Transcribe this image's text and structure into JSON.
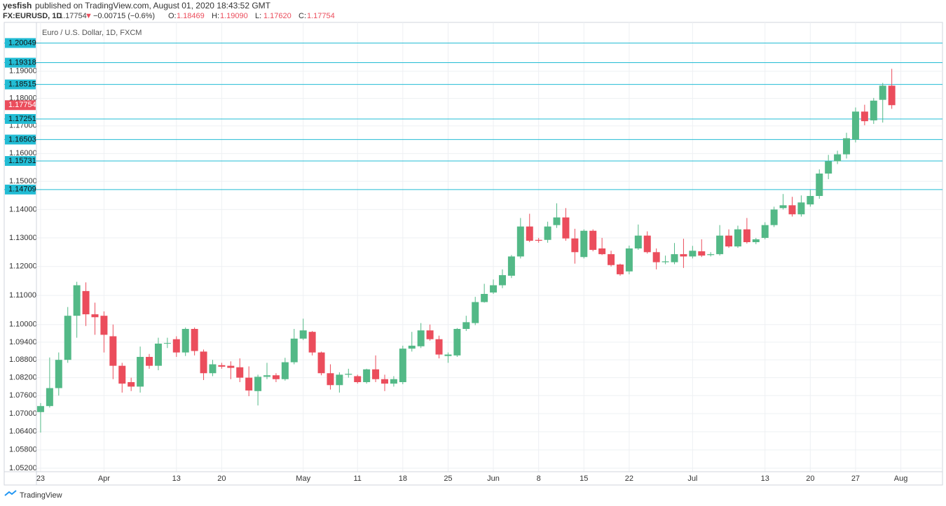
{
  "header": {
    "author": "yesfish",
    "published": "published on TradingView.com, August 01, 2020 18:43:52 GMT",
    "symbol": "FX:EURUSD, 1D",
    "last": "1.17754",
    "change_arrow": "▼",
    "change": "−0.00715 (−0.6%)",
    "ohlc_labels": [
      "O:",
      "H:",
      "L:",
      "C:"
    ],
    "ohlc_values": [
      "1.18469",
      "1.19090",
      "1.17620",
      "1.17754"
    ]
  },
  "footer": {
    "brand": "TradingView"
  },
  "chart_data": {
    "type": "candlestick",
    "legend": "Euro / U.S. Dollar, 1D, FXCM",
    "log_scale": true,
    "grid": true,
    "up_color": "#53b987",
    "down_color": "#eb4d5c",
    "level_color": "#22bcd4",
    "open": [
      1.0705,
      1.0725,
      1.0785,
      1.088,
      1.103,
      1.1115,
      1.1035,
      1.103,
      1.096,
      1.086,
      1.0805,
      1.079,
      1.089,
      1.086,
      1.0935,
      1.095,
      1.0905,
      1.0985,
      1.0908,
      1.0835,
      1.0862,
      1.086,
      1.0855,
      1.082,
      1.0775,
      1.0823,
      1.0828,
      1.0815,
      1.0872,
      1.0952,
      1.0975,
      1.0905,
      1.0835,
      1.0795,
      1.083,
      1.0825,
      1.0805,
      1.0848,
      1.0815,
      1.08,
      1.0805,
      1.0918,
      1.0926,
      1.098,
      1.095,
      1.0893,
      1.0895,
      1.0985,
      1.1005,
      1.1077,
      1.111,
      1.1135,
      1.1168,
      1.1235,
      1.134,
      1.1293,
      1.1293,
      1.1345,
      1.1372,
      1.1298,
      1.1233,
      1.1325,
      1.1263,
      1.1243,
      1.1207,
      1.1183,
      1.1263,
      1.1308,
      1.125,
      1.1215,
      1.1215,
      1.1243,
      1.1235,
      1.1253,
      1.124,
      1.1243,
      1.1308,
      1.127,
      1.133,
      1.1285,
      1.13,
      1.1345,
      1.1405,
      1.1415,
      1.1383,
      1.1418,
      1.1448,
      1.1528,
      1.1572,
      1.1597,
      1.165,
      1.1752,
      1.172,
      1.1795,
      1.18469
    ],
    "high": [
      1.0735,
      1.0888,
      1.0905,
      1.106,
      1.1147,
      1.1145,
      1.1075,
      1.1045,
      1.1,
      1.087,
      1.082,
      1.0925,
      1.09,
      1.0955,
      1.0955,
      1.096,
      1.099,
      1.099,
      1.0915,
      1.088,
      1.087,
      1.0875,
      1.0885,
      1.0858,
      1.083,
      1.087,
      1.0835,
      1.0887,
      1.0985,
      1.102,
      1.0978,
      1.0908,
      1.0865,
      1.0838,
      1.085,
      1.083,
      1.085,
      1.0895,
      1.083,
      1.0825,
      1.0928,
      1.0975,
      1.1005,
      1.1,
      1.0962,
      1.0905,
      1.0988,
      1.103,
      1.1095,
      1.114,
      1.1155,
      1.119,
      1.124,
      1.137,
      1.1385,
      1.13,
      1.1357,
      1.1422,
      1.1405,
      1.1332,
      1.133,
      1.133,
      1.13,
      1.1255,
      1.121,
      1.1273,
      1.1347,
      1.1323,
      1.1263,
      1.1238,
      1.1282,
      1.1297,
      1.1272,
      1.1295,
      1.125,
      1.1345,
      1.133,
      1.1343,
      1.137,
      1.13,
      1.1355,
      1.141,
      1.1455,
      1.1445,
      1.145,
      1.147,
      1.1543,
      1.1595,
      1.161,
      1.1675,
      1.1767,
      1.1777,
      1.1802,
      1.1857,
      1.1909
    ],
    "low": [
      1.0637,
      1.072,
      1.076,
      1.087,
      1.0955,
      1.0995,
      1.0965,
      1.0905,
      1.0815,
      1.077,
      1.0775,
      1.077,
      1.085,
      1.0845,
      1.092,
      1.089,
      1.0893,
      1.0895,
      1.0812,
      1.0825,
      1.085,
      1.0815,
      1.0805,
      1.0758,
      1.0727,
      1.0815,
      1.0805,
      1.081,
      1.0865,
      1.0947,
      1.0895,
      1.0828,
      1.078,
      1.077,
      1.082,
      1.08,
      1.08,
      1.0805,
      1.0775,
      1.079,
      1.0798,
      1.0908,
      1.092,
      1.0945,
      1.0885,
      1.087,
      1.089,
      1.0978,
      1.0998,
      1.1075,
      1.1105,
      1.1125,
      1.116,
      1.1228,
      1.1285,
      1.1283,
      1.1283,
      1.1335,
      1.129,
      1.121,
      1.1228,
      1.1253,
      1.124,
      1.12,
      1.1168,
      1.1173,
      1.1258,
      1.1245,
      1.119,
      1.1208,
      1.1208,
      1.1195,
      1.1228,
      1.1233,
      1.1235,
      1.1238,
      1.1265,
      1.1265,
      1.128,
      1.1278,
      1.1295,
      1.1338,
      1.14,
      1.1375,
      1.1375,
      1.141,
      1.1438,
      1.1508,
      1.1562,
      1.1582,
      1.164,
      1.1702,
      1.1707,
      1.1712,
      1.1762
    ],
    "close": [
      1.0725,
      1.0785,
      1.088,
      1.103,
      1.1135,
      1.1035,
      1.1025,
      1.0965,
      1.086,
      1.08,
      1.079,
      1.089,
      1.086,
      1.0935,
      1.0937,
      1.0905,
      1.0985,
      1.091,
      1.0835,
      1.0865,
      1.0857,
      1.0853,
      1.082,
      1.0777,
      1.0823,
      1.0828,
      1.0815,
      1.0872,
      1.0952,
      1.098,
      1.0905,
      1.0835,
      1.0795,
      1.083,
      1.0833,
      1.0805,
      1.0848,
      1.0815,
      1.08,
      1.0815,
      1.0918,
      1.0928,
      1.098,
      1.095,
      1.0898,
      1.0898,
      1.0985,
      1.1008,
      1.1077,
      1.1105,
      1.1135,
      1.117,
      1.1235,
      1.134,
      1.129,
      1.129,
      1.134,
      1.1372,
      1.1298,
      1.125,
      1.1325,
      1.1258,
      1.1243,
      1.1205,
      1.1173,
      1.1263,
      1.1308,
      1.125,
      1.1215,
      1.1218,
      1.1243,
      1.1235,
      1.1255,
      1.1238,
      1.1243,
      1.1308,
      1.127,
      1.133,
      1.1285,
      1.1295,
      1.1345,
      1.14,
      1.1415,
      1.1383,
      1.1425,
      1.1448,
      1.1528,
      1.1572,
      1.1597,
      1.1655,
      1.1752,
      1.1717,
      1.1792,
      1.1847,
      1.17754
    ],
    "levels": [
      1.20049,
      1.19318,
      1.18515,
      1.17251,
      1.16503,
      1.15731,
      1.14709
    ],
    "xlim": [
      -0.46,
      99.6
    ],
    "xticks": [
      {
        "value": 0,
        "label": "23"
      },
      {
        "value": 7,
        "label": "Apr"
      },
      {
        "value": 15,
        "label": "13"
      },
      {
        "value": 20,
        "label": "20"
      },
      {
        "value": 29,
        "label": "May"
      },
      {
        "value": 35,
        "label": "11"
      },
      {
        "value": 40,
        "label": "18"
      },
      {
        "value": 45,
        "label": "25"
      },
      {
        "value": 50,
        "label": "Jun"
      },
      {
        "value": 55,
        "label": "8"
      },
      {
        "value": 60,
        "label": "15"
      },
      {
        "value": 65,
        "label": "22"
      },
      {
        "value": 72,
        "label": "Jul"
      },
      {
        "value": 80,
        "label": "13"
      },
      {
        "value": 85,
        "label": "20"
      },
      {
        "value": 90,
        "label": "27"
      },
      {
        "value": 95,
        "label": "Aug"
      }
    ],
    "ylim": [
      1.05086,
      1.2082
    ],
    "yticks": [
      {
        "value": 1.19,
        "label": "1.19000"
      },
      {
        "value": 1.18,
        "label": "1.18000"
      },
      {
        "value": 1.17,
        "label": "1.17000"
      },
      {
        "value": 1.16,
        "label": "1.16000"
      },
      {
        "value": 1.15,
        "label": "1.15000"
      },
      {
        "value": 1.14,
        "label": "1.14000"
      },
      {
        "value": 1.13,
        "label": "1.13000"
      },
      {
        "value": 1.12,
        "label": "1.12000"
      },
      {
        "value": 1.11,
        "label": "1.11000"
      },
      {
        "value": 1.1,
        "label": "1.10000"
      },
      {
        "value": 1.094,
        "label": "1.09400"
      },
      {
        "value": 1.088,
        "label": "1.08800"
      },
      {
        "value": 1.082,
        "label": "1.08200"
      },
      {
        "value": 1.076,
        "label": "1.07600"
      },
      {
        "value": 1.07,
        "label": "1.07000"
      },
      {
        "value": 1.064,
        "label": "1.06400"
      },
      {
        "value": 1.058,
        "label": "1.05800"
      },
      {
        "value": 1.052,
        "label": "1.05200"
      }
    ]
  }
}
